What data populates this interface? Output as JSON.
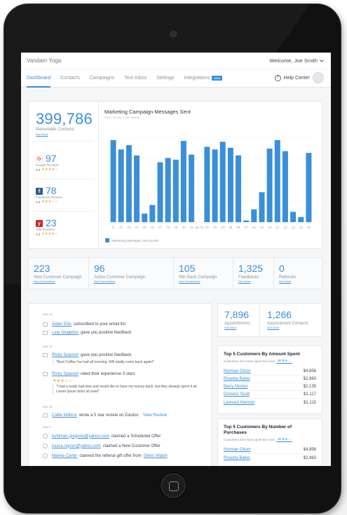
{
  "app": {
    "title": "Vandam Yoga",
    "welcome": "Welcome, Joe Smith"
  },
  "nav": {
    "tabs": [
      {
        "label": "Dashboard",
        "active": true
      },
      {
        "label": "Contacts"
      },
      {
        "label": "Campaigns"
      },
      {
        "label": "Text Inbox"
      },
      {
        "label": "Settings"
      },
      {
        "label": "Integrations"
      }
    ],
    "new_badge": "NEW",
    "help": "Help Center",
    "help_icon": "?"
  },
  "summary": {
    "marketable": {
      "value": "399,786",
      "label": "Marketable Contacts",
      "see_more": "See More"
    },
    "reviews": [
      {
        "source": "Google Reviews",
        "value": "97",
        "rating": "4.3",
        "logo": "G",
        "icon": "google-icon",
        "color": "#ea4335",
        "bg": "#fff",
        "stars": "★★★★☆"
      },
      {
        "source": "Facebook Reviews",
        "value": "78",
        "rating": "3.2",
        "logo": "f",
        "icon": "facebook-icon",
        "color": "#fff",
        "bg": "#3b5998",
        "stars": "★★★☆☆"
      },
      {
        "source": "Yelp Reviews",
        "value": "23",
        "rating": "3.4",
        "logo": "y",
        "icon": "yelp-icon",
        "color": "#fff",
        "bg": "#d32323",
        "stars": "★★★★☆"
      }
    ]
  },
  "chart_data": {
    "type": "bar",
    "title": "Marketing Campaign Messages Sent",
    "subtitle": "Hover on bars to see details",
    "categories": [
      "21",
      "22",
      "23",
      "24",
      "25",
      "26",
      "27",
      "28",
      "29",
      "30",
      "31",
      "Jan 01",
      "02",
      "03",
      "04",
      "05",
      "06",
      "07",
      "08",
      "09",
      "10",
      "11",
      "12",
      "13",
      "14",
      "15"
    ],
    "series": [
      {
        "name": "Marketing Messages Sent by Mia",
        "values": [
          96,
          85,
          90,
          78,
          10,
          20,
          70,
          75,
          73,
          95,
          79,
          0,
          88,
          85,
          94,
          87,
          78,
          2,
          15,
          35,
          86,
          96,
          83,
          12,
          6,
          81
        ]
      }
    ],
    "ylim": [
      0,
      100
    ],
    "colors": [
      "#3a8fd8"
    ]
  },
  "kpis": [
    {
      "value": "223",
      "label": "New Customer Campaign",
      "see": "See Conversions"
    },
    {
      "value": "96",
      "label": "Active Customer Campaign",
      "see": "See Conversions"
    },
    {
      "value": "105",
      "label": "Win Back Campaign",
      "see": "See Conversions"
    },
    {
      "value": "1,325",
      "label": "Feedbacks",
      "see": "See More"
    },
    {
      "value": "0",
      "label": "Referrals",
      "see": "See More"
    }
  ],
  "feed": {
    "dates": [
      "Jan 15",
      "Jan 12",
      "Jan 10",
      "Jan 9"
    ],
    "items": [
      {
        "name": "Aiden Ellis",
        "text": "subscribed to your email list"
      },
      {
        "name": "Lela Singleton",
        "text": "gave you positive feedback"
      },
      {
        "name": "Ricky Spanish",
        "text": "gave you positive feedback",
        "quote": "\"Best Coffee I've had all morning. Will totally come back again!\""
      },
      {
        "name": "Ricky Spanish",
        "text": "rated their experience 3 stars",
        "stars": "★★★☆☆",
        "quote": "\"I had a really bad time and would like to have my money back, but they already spent it all. Lorem ipsum dolor sit amet\""
      },
      {
        "name": "Callie Wilkins",
        "text": "wrote a 5 star review on Zocdoc",
        "action": "View Review"
      },
      {
        "name": "kuhlman.gregorio@yahoo.com",
        "text": "claimed a Scheduled Offer"
      },
      {
        "name": "louisa.raynor@yahoo.com",
        "text": "claimed a New Customer Offer"
      },
      {
        "name": "Mamie Carter",
        "text": "claimed the referral gift offer from",
        "name2": "Glenn Walsh"
      }
    ]
  },
  "appointments": [
    {
      "value": "7,896",
      "label": "Appointments",
      "see": "See More"
    },
    {
      "value": "1,266",
      "label": "Appointment Contacts",
      "see": "See More"
    }
  ],
  "top5_amount": {
    "title": "Top 5 Customers By Amount Spent",
    "sub": "Customers who have spent the most",
    "filter": "all time",
    "rows": [
      {
        "name": "Norman Olson",
        "amount": "$4,856"
      },
      {
        "name": "Rosetta Baker",
        "amount": "$2,963"
      },
      {
        "name": "Barry Morton",
        "amount": "$2,135"
      },
      {
        "name": "Dominic Scott",
        "amount": "$1,117"
      },
      {
        "name": "Leonard Hanson",
        "amount": "$1,115"
      }
    ]
  },
  "top5_purchases": {
    "title": "Top 5 Customers By Number of Purchases",
    "sub": "Customers who have spent the most",
    "filter": "all time",
    "rows": [
      {
        "name": "Norman Olson",
        "amount": "$4,856"
      },
      {
        "name": "Rosetta Baker",
        "amount": "$2,963"
      }
    ]
  }
}
